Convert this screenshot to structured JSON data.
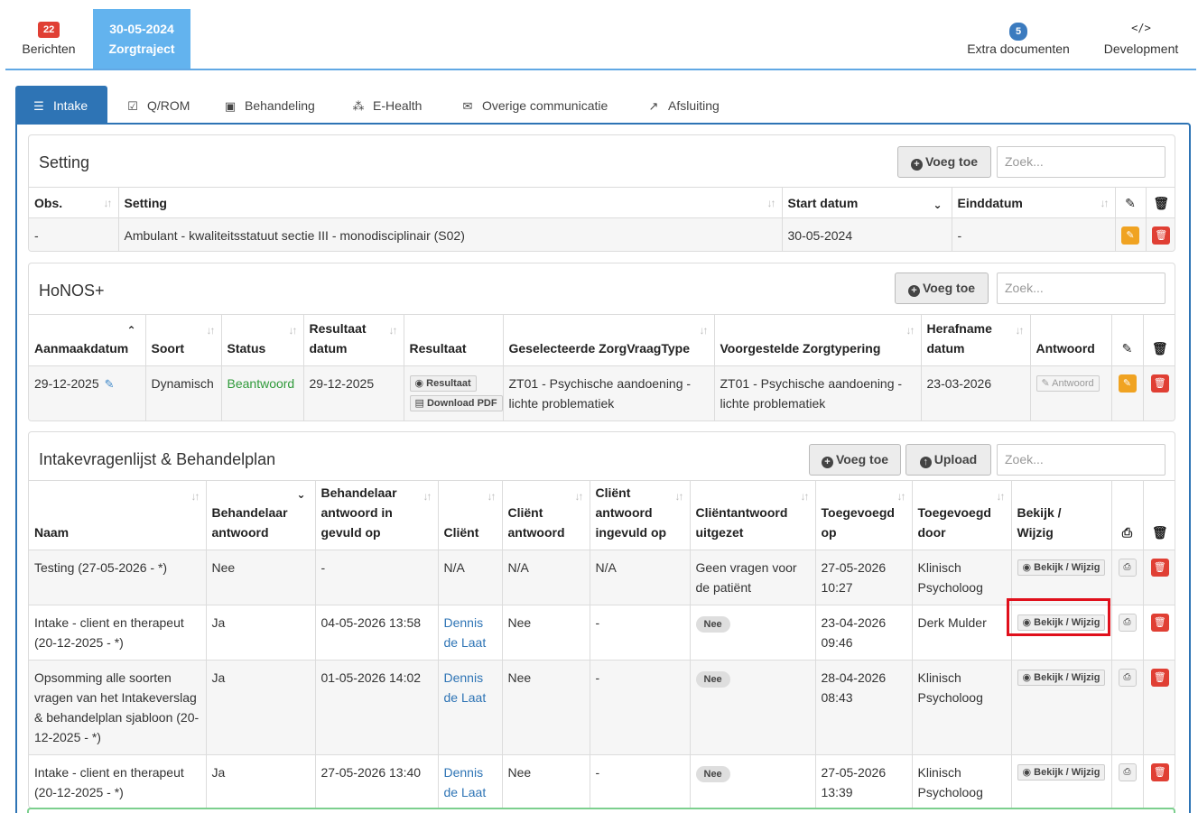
{
  "topbar": {
    "berichten": {
      "badge": "22",
      "label": "Berichten"
    },
    "zorgtraject": {
      "date": "30-05-2024",
      "label": "Zorgtraject"
    },
    "extra": {
      "badge": "5",
      "label": "Extra documenten"
    },
    "development": {
      "icon": "</>",
      "label": "Development"
    }
  },
  "tabs": [
    {
      "label": "Intake",
      "icon": "sliders-icon",
      "active": true
    },
    {
      "label": "Q/ROM",
      "icon": "check-square-icon"
    },
    {
      "label": "Behandeling",
      "icon": "medkit-icon"
    },
    {
      "label": "E-Health",
      "icon": "cubes-icon"
    },
    {
      "label": "Overige communicatie",
      "icon": "envelope-icon"
    },
    {
      "label": "Afsluiting",
      "icon": "external-link-icon"
    }
  ],
  "setting": {
    "title": "Setting",
    "add_label": "Voeg toe",
    "search_placeholder": "Zoek...",
    "columns": [
      "Obs.",
      "Setting",
      "Start datum",
      "Einddatum"
    ],
    "rows": [
      {
        "obs": "-",
        "setting": "Ambulant - kwaliteitsstatuut sectie III - monodisciplinair (S02)",
        "start": "30-05-2024",
        "eind": "-"
      }
    ]
  },
  "honos": {
    "title": "HoNOS+",
    "add_label": "Voeg toe",
    "search_placeholder": "Zoek...",
    "columns": [
      "Aanmaakdatum",
      "Soort",
      "Status",
      "Resultaat datum",
      "Resultaat",
      "Geselecteerde ZorgVraagType",
      "Voorgestelde Zorgtypering",
      "Herafname datum",
      "Antwoord"
    ],
    "rows": [
      {
        "aanmaak": "29-12-2025",
        "soort": "Dynamisch",
        "status": "Beantwoord",
        "res_datum": "29-12-2025",
        "res_btn": "Resultaat",
        "pdf_btn": "Download PDF",
        "zvt": "ZT01 - Psychische aandoening - lichte problematiek",
        "zt": "ZT01 - Psychische aandoening - lichte problematiek",
        "herafname": "23-03-2026",
        "antwoord_btn": "Antwoord"
      }
    ]
  },
  "intake": {
    "title": "Intakevragenlijst & Behandelplan",
    "add_label": "Voeg toe",
    "upload_label": "Upload",
    "search_placeholder": "Zoek...",
    "columns": [
      "Naam",
      "Behandelaar antwoord",
      "Behandelaar antwoord in gevuld op",
      "Cliënt",
      "Cliënt antwoord",
      "Cliënt antwoord ingevuld op",
      "Cliëntantwoord uitgezet",
      "Toegevoegd op",
      "Toegevoegd door",
      "Bekijk / Wijzig"
    ],
    "rows": [
      {
        "naam": "Testing (27-05-2026 - *)",
        "beh": "Nee",
        "beh_op": "-",
        "client": "N/A",
        "client_link": false,
        "cl_antw": "N/A",
        "cl_op": "N/A",
        "uitgezet": "Geen vragen voor de patiënt",
        "uitgezet_pill": false,
        "toeg_op": "27-05-2026 10:27",
        "toeg_door": "Klinisch Psycholoog",
        "btn": "Bekijk / Wijzig"
      },
      {
        "naam": "Intake - client en therapeut (20-12-2025 - *)",
        "beh": "Ja",
        "beh_op": "04-05-2026 13:58",
        "client": "Dennis de Laat",
        "client_link": true,
        "cl_antw": "Nee",
        "cl_op": "-",
        "uitgezet": "Nee",
        "uitgezet_pill": true,
        "toeg_op": "23-04-2026 09:46",
        "toeg_door": "Derk Mulder",
        "btn": "Bekijk / Wijzig"
      },
      {
        "naam": "Opsomming alle soorten vragen van het Intakeverslag & behandelplan sjabloon (20-12-2025 - *)",
        "beh": "Ja",
        "beh_op": "01-05-2026 14:02",
        "client": "Dennis de Laat",
        "client_link": true,
        "cl_antw": "Nee",
        "cl_op": "-",
        "uitgezet": "Nee",
        "uitgezet_pill": true,
        "toeg_op": "28-04-2026 08:43",
        "toeg_door": "Klinisch Psycholoog",
        "btn": "Bekijk / Wijzig"
      },
      {
        "naam": "Intake - client en therapeut (20-12-2025 - *)",
        "beh": "Ja",
        "beh_op": "27-05-2026 13:40",
        "client": "Dennis de Laat",
        "client_link": true,
        "cl_antw": "Nee",
        "cl_op": "-",
        "uitgezet": "Nee",
        "uitgezet_pill": true,
        "toeg_op": "27-05-2026 13:39",
        "toeg_door": "Klinisch Psycholoog",
        "btn": "Bekijk / Wijzig"
      }
    ]
  },
  "colors": {
    "accent": "#2e74b5",
    "active_top": "#63b3ee",
    "danger": "#e03f34",
    "warning": "#f0a322",
    "highlight": "#e0101c"
  }
}
